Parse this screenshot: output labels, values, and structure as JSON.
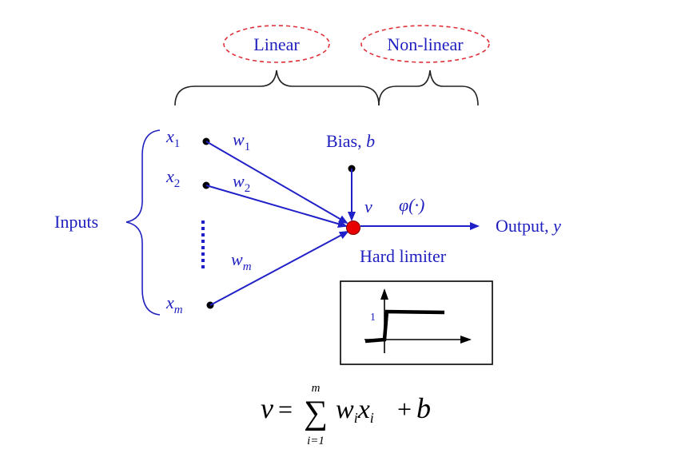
{
  "colors": {
    "text": "#1f1fbf",
    "arrow": "#2020c8",
    "ellipse": "#e0303a",
    "neuron": "#e80000",
    "black": "#000000"
  },
  "labels": {
    "linear": "Linear",
    "nonlinear": "Non-linear",
    "inputs": "Inputs",
    "bias": "Bias, ",
    "bias_var": "b",
    "output": "Output, ",
    "output_var": "y",
    "v": "v",
    "phi": "φ(·)",
    "hard_limiter": "Hard limiter"
  },
  "inputs": [
    {
      "var": "x",
      "sub": "1",
      "weight": "w",
      "wsub": "1"
    },
    {
      "var": "x",
      "sub": "2",
      "weight": "w",
      "wsub": "2"
    },
    {
      "var": "x",
      "sub": "m",
      "weight": "w",
      "wsub": "m"
    }
  ],
  "step_plot": {
    "tick_label": "1"
  },
  "formula": {
    "lhs": "v",
    "equals": "=",
    "sum_symbol": "∑",
    "upper": "m",
    "lower": "i=1",
    "term_w": "w",
    "term_w_sub": "i",
    "term_x": "x",
    "term_x_sub": "i",
    "plus": "+",
    "bias": "b"
  }
}
